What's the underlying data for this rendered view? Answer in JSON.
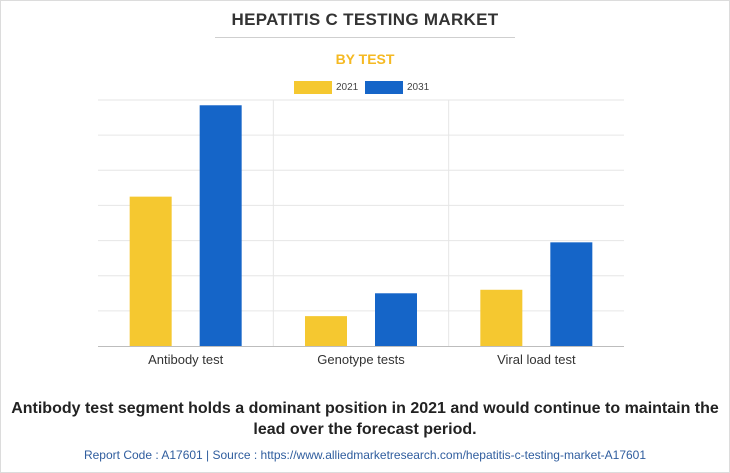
{
  "header": {
    "title": "HEPATITIS C TESTING MARKET",
    "subtitle": "BY TEST"
  },
  "colors": {
    "series_2021": "#f5c830",
    "series_2031": "#1565c8",
    "subtitle": "#f5b922"
  },
  "chart_data": {
    "type": "bar",
    "title": "HEPATITIS C TESTING MARKET",
    "subtitle": "BY TEST",
    "categories": [
      "Antibody test",
      "Genotype tests",
      "Viral load test"
    ],
    "series": [
      {
        "name": "2021",
        "values": [
          42.5,
          8.5,
          16.0
        ]
      },
      {
        "name": "2031",
        "values": [
          68.5,
          15.0,
          29.5
        ]
      }
    ],
    "xlabel": "",
    "ylabel": "",
    "ylim": [
      0,
      70
    ],
    "grid": true,
    "legend": "top-center"
  },
  "caption": "Antibody test segment holds a dominant position in 2021 and would continue to maintain the lead over the forecast period.",
  "footer": "Report Code : A17601  |  Source : https://www.alliedmarketresearch.com/hepatitis-c-testing-market-A17601"
}
